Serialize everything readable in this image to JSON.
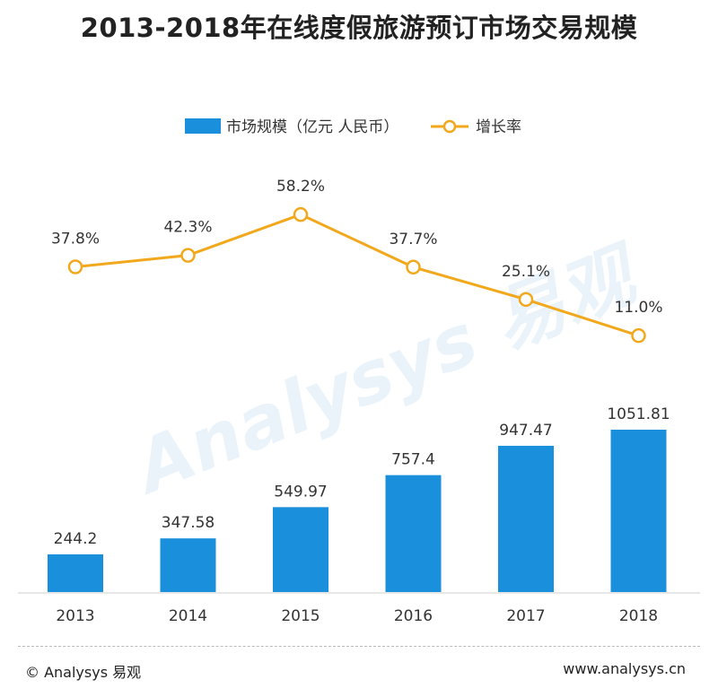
{
  "title": "2013-2018年在线度假旅游预订市场交易规模",
  "footer": {
    "left": "© Analysys 易观",
    "right": "www.analysys.cn"
  },
  "colors": {
    "bar": "#1a8fdb",
    "line": "#f2a81d",
    "watermark": "#e6f1f8"
  },
  "chart_data": {
    "type": "bar",
    "categories": [
      "2013",
      "2014",
      "2015",
      "2016",
      "2017",
      "2018"
    ],
    "series": [
      {
        "name": "市场规模（亿元 人民币）",
        "type": "bar",
        "values": [
          244.2,
          347.58,
          549.97,
          757.4,
          947.47,
          1051.81
        ],
        "labels": [
          "244.2",
          "347.58",
          "549.97",
          "757.4",
          "947.47",
          "1051.81"
        ]
      },
      {
        "name": "增长率",
        "type": "line",
        "values": [
          37.8,
          42.3,
          58.2,
          37.7,
          25.1,
          11.0
        ],
        "labels": [
          "37.8%",
          "42.3%",
          "58.2%",
          "37.7%",
          "25.1%",
          "11.0%"
        ]
      }
    ],
    "legend": "top-center",
    "grid": false
  }
}
